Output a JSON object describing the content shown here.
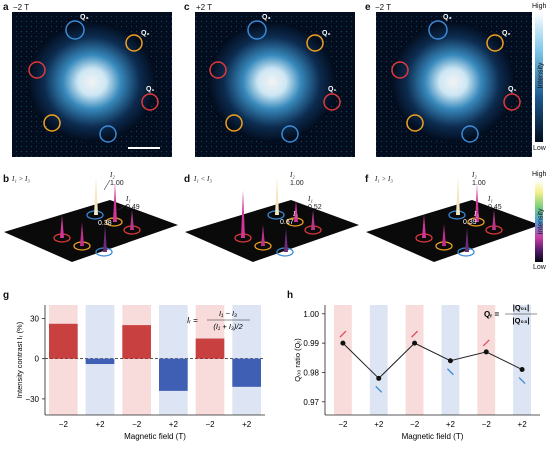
{
  "panels": {
    "a": {
      "letter": "a",
      "field": "−2 T"
    },
    "c": {
      "letter": "c",
      "field": "+2 T"
    },
    "e": {
      "letter": "e",
      "field": "−2 T"
    },
    "b": {
      "letter": "b",
      "cond": "I₁ > I₃",
      "I2": "I₂",
      "v2": "1.00",
      "I1": "I₁",
      "v1": "0.49",
      "v3": "0.38"
    },
    "d": {
      "letter": "d",
      "cond": "I₁ < I₃",
      "I2": "I₂",
      "v2": "1.00",
      "I1": "I₁",
      "v1": "0.52",
      "I3": "I₃",
      "v3": "0.67"
    },
    "f": {
      "letter": "f",
      "cond": "I₁ > I₃",
      "I2": "I₂",
      "v2": "1.00",
      "I1": "I₁",
      "v1": "0.45",
      "I3": "I₃",
      "v3": "0.39"
    },
    "g": {
      "letter": "g"
    },
    "h": {
      "letter": "h"
    }
  },
  "q_labels": {
    "q1": "Q₁",
    "q2": "Q₂",
    "q3": "Q₃"
  },
  "colorbar_top": {
    "high": "High",
    "low": "Low",
    "title": "Intensity"
  },
  "colorbar_mid": {
    "high": "High",
    "low": "Low",
    "title": "Intensity"
  },
  "colors": {
    "red": "#c94040",
    "blue": "#3f5fb5",
    "pink_bg": "#f8dcdc",
    "blue_bg": "#dde4f3",
    "ring_red": "#e03a3a",
    "ring_blue": "#3a8ad6",
    "ring_orange": "#f0a020"
  },
  "chart_data": [
    {
      "type": "bar",
      "categories": [
        "−2",
        "+2",
        "−2",
        "+2",
        "−2",
        "+2"
      ],
      "values": [
        26,
        -4,
        25,
        -24,
        15,
        -21
      ],
      "ylabel": "Intensity contrast Iᵣ (%)",
      "xlabel": "Magnetic field (T)",
      "yticks": [
        "30",
        "0",
        "−30"
      ],
      "ylim": [
        -42,
        40
      ],
      "formula": {
        "lhs": "Iᵣ =",
        "num": "I₁ − I₃",
        "den": "(I₁ + I₃)/2"
      }
    },
    {
      "type": "line",
      "categories": [
        "−2",
        "+2",
        "−2",
        "+2",
        "−2",
        "+2"
      ],
      "values": [
        0.99,
        0.978,
        0.99,
        0.984,
        0.987,
        0.981
      ],
      "ylabel": "Q₀₀ ratio (Qᵣ)",
      "xlabel": "Magnetic field (T)",
      "yticks": [
        "1.00",
        "0.99",
        "0.98",
        "0.97"
      ],
      "ylim": [
        0.9655,
        1.003
      ],
      "formula": {
        "lhs": "Qᵣ =",
        "num": "|Q₀₁|",
        "den": "|Q₀₃|"
      }
    }
  ]
}
